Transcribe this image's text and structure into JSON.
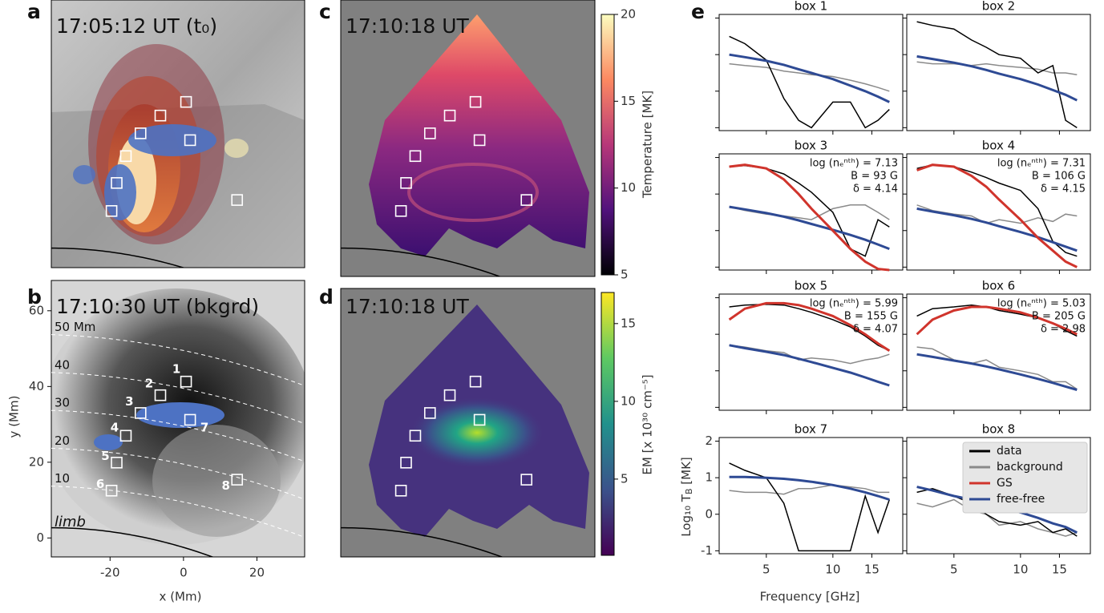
{
  "figure": {
    "boxes": [
      {
        "label": "1",
        "x": 0.7,
        "y": 41.3
      },
      {
        "label": "2",
        "x": -6.3,
        "y": 37.7
      },
      {
        "label": "3",
        "x": -11.7,
        "y": 33.0
      },
      {
        "label": "4",
        "x": -15.7,
        "y": 27.0
      },
      {
        "label": "5",
        "x": -18.2,
        "y": 19.9
      },
      {
        "label": "6",
        "x": -19.6,
        "y": 12.5
      },
      {
        "label": "7",
        "x": 1.8,
        "y": 31.2
      },
      {
        "label": "8",
        "x": 14.6,
        "y": 15.4
      }
    ],
    "panel_a": {
      "letter": "a",
      "time": "17:05:12 UT (t₀)"
    },
    "panel_b": {
      "letter": "b",
      "time": "17:10:30 UT (bkgrd)",
      "x_label": "x (Mm)",
      "y_label": "y (Mm)",
      "xlim": [
        -36,
        33
      ],
      "ylim": [
        -5,
        68
      ],
      "xticks": [
        -20,
        0,
        20
      ],
      "yticks": [
        0,
        20,
        40,
        60
      ],
      "contours": [
        {
          "value": 50,
          "label": "50 Mm"
        },
        40,
        30,
        20,
        10
      ],
      "limb_label": "limb"
    },
    "panel_c": {
      "letter": "c",
      "time": "17:10:18 UT",
      "colorbar": {
        "label": "Temperature [MK]",
        "lim": [
          5,
          20
        ],
        "ticks": [
          5,
          10,
          15,
          20
        ]
      }
    },
    "panel_d": {
      "letter": "d",
      "time": "17:10:18 UT",
      "colorbar": {
        "label": "EM [x 10³⁰ cm⁻⁵]",
        "lim": [
          0.1,
          17.0
        ],
        "ticks": [
          5,
          10,
          15
        ]
      }
    },
    "panel_e": {
      "letter": "e",
      "x_label": "Frequency [GHz]",
      "y_label": {
        "main": "Log₁₀ T",
        "sub": "B",
        "unit": " [MK]"
      },
      "x_log": true,
      "xlim": [
        3.06,
        20.7
      ],
      "xticks": [
        5,
        10,
        15
      ],
      "ylim": [
        -1.08,
        2.1
      ],
      "yticks": [
        -1,
        0,
        1,
        2
      ],
      "x": [
        3.4,
        4,
        5,
        6,
        7,
        8,
        10,
        12,
        14,
        16,
        18
      ],
      "legend": [
        {
          "name": "data",
          "color": "#000000"
        },
        {
          "name": "background",
          "color": "#8a8a8a"
        },
        {
          "name": "GS",
          "color": "#d0342c"
        },
        {
          "name": "free-free",
          "color": "#2e4a94"
        }
      ],
      "boxes": [
        {
          "title": "box 1",
          "data": [
            1.5,
            1.3,
            0.85,
            -0.2,
            -0.8,
            -1.0,
            -0.3,
            -0.3,
            -1.0,
            -0.8,
            -0.5
          ],
          "background": [
            0.75,
            0.7,
            0.65,
            0.55,
            0.5,
            0.45,
            0.4,
            0.3,
            0.2,
            0.1,
            0.0
          ],
          "free_free": [
            1.0,
            0.93,
            0.83,
            0.72,
            0.6,
            0.5,
            0.33,
            0.15,
            0.0,
            -0.15,
            -0.3
          ]
        },
        {
          "title": "box 2",
          "data": [
            1.9,
            1.8,
            1.7,
            1.4,
            1.2,
            1.0,
            0.9,
            0.5,
            0.7,
            -0.8,
            -1.0
          ],
          "background": [
            0.8,
            0.75,
            0.75,
            0.7,
            0.75,
            0.7,
            0.65,
            0.6,
            0.5,
            0.5,
            0.45
          ],
          "free_free": [
            0.95,
            0.88,
            0.78,
            0.68,
            0.58,
            0.48,
            0.33,
            0.18,
            0.03,
            -0.1,
            -0.25
          ]
        },
        {
          "title": "box 3",
          "data": [
            1.75,
            1.78,
            1.7,
            1.55,
            1.3,
            1.05,
            0.5,
            -0.5,
            -0.7,
            0.3,
            0.1
          ],
          "background": [
            0.65,
            0.55,
            0.45,
            0.4,
            0.35,
            0.3,
            0.6,
            0.7,
            0.7,
            0.5,
            0.3
          ],
          "gs": [
            1.75,
            1.8,
            1.7,
            1.4,
            1.0,
            0.6,
            0.0,
            -0.5,
            -0.85,
            -1.05,
            -1.08
          ],
          "free_free": [
            0.65,
            0.58,
            0.48,
            0.38,
            0.28,
            0.18,
            0.02,
            -0.12,
            -0.25,
            -0.38,
            -0.5
          ],
          "annotation": [
            "log (nₑⁿᵗʰ) = 7.13",
            "B =  93 G",
            "δ = 4.14"
          ]
        },
        {
          "title": "box 4",
          "data": [
            1.7,
            1.8,
            1.75,
            1.6,
            1.45,
            1.3,
            1.1,
            0.6,
            -0.3,
            -0.6,
            -0.7
          ],
          "background": [
            0.7,
            0.55,
            0.45,
            0.4,
            0.2,
            0.3,
            0.2,
            0.35,
            0.25,
            0.45,
            0.4
          ],
          "gs": [
            1.65,
            1.8,
            1.75,
            1.5,
            1.2,
            0.85,
            0.3,
            -0.2,
            -0.55,
            -0.85,
            -1.0
          ],
          "free_free": [
            0.6,
            0.52,
            0.42,
            0.32,
            0.22,
            0.12,
            -0.04,
            -0.18,
            -0.32,
            -0.44,
            -0.55
          ],
          "annotation": [
            "log (nₑⁿᵗʰ) = 7.31",
            "B = 106 G",
            "δ = 4.15"
          ]
        },
        {
          "title": "box 5",
          "data": [
            1.75,
            1.8,
            1.82,
            1.8,
            1.7,
            1.6,
            1.4,
            1.2,
            0.95,
            0.7,
            0.55
          ],
          "background": [
            0.7,
            0.65,
            0.55,
            0.5,
            0.3,
            0.35,
            0.3,
            0.2,
            0.3,
            0.35,
            0.45
          ],
          "gs": [
            1.4,
            1.7,
            1.85,
            1.85,
            1.8,
            1.7,
            1.5,
            1.25,
            1.0,
            0.75,
            0.55
          ],
          "free_free": [
            0.7,
            0.62,
            0.52,
            0.43,
            0.33,
            0.24,
            0.08,
            -0.05,
            -0.18,
            -0.3,
            -0.4
          ],
          "annotation": [
            "log (nₑⁿᵗʰ) = 5.99",
            "B = 155 G",
            "δ = 4.07"
          ]
        },
        {
          "title": "box 6",
          "data": [
            1.5,
            1.7,
            1.75,
            1.8,
            1.75,
            1.65,
            1.55,
            1.45,
            1.3,
            1.1,
            0.95
          ],
          "background": [
            0.65,
            0.6,
            0.3,
            0.2,
            0.3,
            0.1,
            0.0,
            -0.1,
            -0.3,
            -0.3,
            -0.5
          ],
          "gs": [
            1.0,
            1.4,
            1.65,
            1.75,
            1.75,
            1.7,
            1.6,
            1.45,
            1.3,
            1.15,
            1.0
          ],
          "free_free": [
            0.45,
            0.38,
            0.28,
            0.2,
            0.12,
            0.04,
            -0.1,
            -0.22,
            -0.33,
            -0.43,
            -0.52
          ],
          "annotation": [
            "log (nₑⁿᵗʰ) = 5.03",
            "B = 205 G",
            "δ = 2.98"
          ]
        },
        {
          "title": "box 7",
          "data": [
            1.4,
            1.2,
            1.0,
            0.3,
            -1.0,
            -1.0,
            -1.0,
            -1.0,
            0.5,
            -0.5,
            0.4
          ],
          "background": [
            0.65,
            0.6,
            0.6,
            0.55,
            0.7,
            0.7,
            0.8,
            0.75,
            0.7,
            0.6,
            0.6
          ],
          "free_free": [
            1.02,
            1.02,
            1.0,
            0.97,
            0.93,
            0.89,
            0.8,
            0.7,
            0.6,
            0.5,
            0.4
          ]
        },
        {
          "title": "box 8",
          "data": [
            0.6,
            0.7,
            0.5,
            0.3,
            0.0,
            -0.2,
            -0.3,
            -0.2,
            -0.5,
            -0.4,
            -0.6
          ],
          "background": [
            0.3,
            0.2,
            0.4,
            0.1,
            0.0,
            -0.3,
            -0.2,
            -0.4,
            -0.5,
            -0.6,
            -0.5
          ],
          "free_free": [
            0.75,
            0.65,
            0.5,
            0.4,
            0.3,
            0.2,
            0.05,
            -0.1,
            -0.25,
            -0.35,
            -0.5
          ]
        }
      ]
    }
  }
}
